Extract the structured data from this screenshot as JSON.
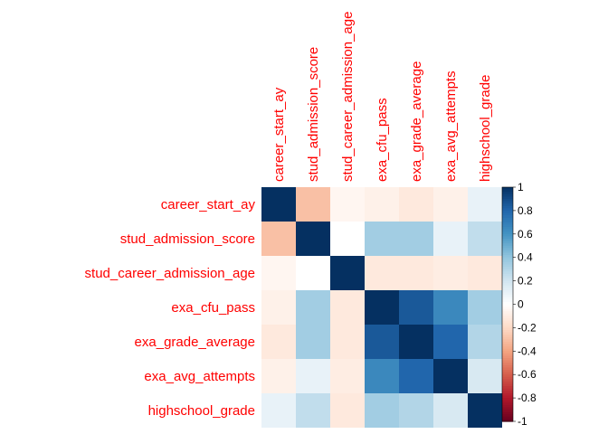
{
  "chart_data": {
    "type": "heatmap",
    "variables": [
      "career_start_ay",
      "stud_admission_score",
      "stud_career_admission_age",
      "exa_cfu_pass",
      "exa_grade_average",
      "exa_avg_attempts",
      "highschool_grade"
    ],
    "matrix": [
      [
        1.0,
        -0.3,
        -0.05,
        -0.08,
        -0.12,
        -0.08,
        0.1
      ],
      [
        -0.3,
        1.0,
        0.0,
        0.35,
        0.35,
        0.1,
        0.25
      ],
      [
        -0.05,
        0.0,
        1.0,
        -0.12,
        -0.12,
        -0.1,
        -0.12
      ],
      [
        -0.08,
        0.35,
        -0.12,
        1.0,
        0.85,
        0.65,
        0.35
      ],
      [
        -0.12,
        0.35,
        -0.12,
        0.85,
        1.0,
        0.8,
        0.3
      ],
      [
        -0.08,
        0.1,
        -0.1,
        0.65,
        0.8,
        1.0,
        0.17
      ],
      [
        0.1,
        0.25,
        -0.12,
        0.35,
        0.3,
        0.17,
        1.0
      ]
    ],
    "colorbar": {
      "range": [
        -1,
        1
      ],
      "ticks": [
        "-1",
        "-0.8",
        "-0.6",
        "-0.4",
        "-0.2",
        "0",
        "0.2",
        "0.4",
        "0.6",
        "0.8",
        "1"
      ],
      "low_color": "#67001f",
      "mid_color": "#ffffff",
      "high_color": "#053061"
    },
    "label_color": "#ff0000",
    "grid": false,
    "legend_position": "right"
  }
}
